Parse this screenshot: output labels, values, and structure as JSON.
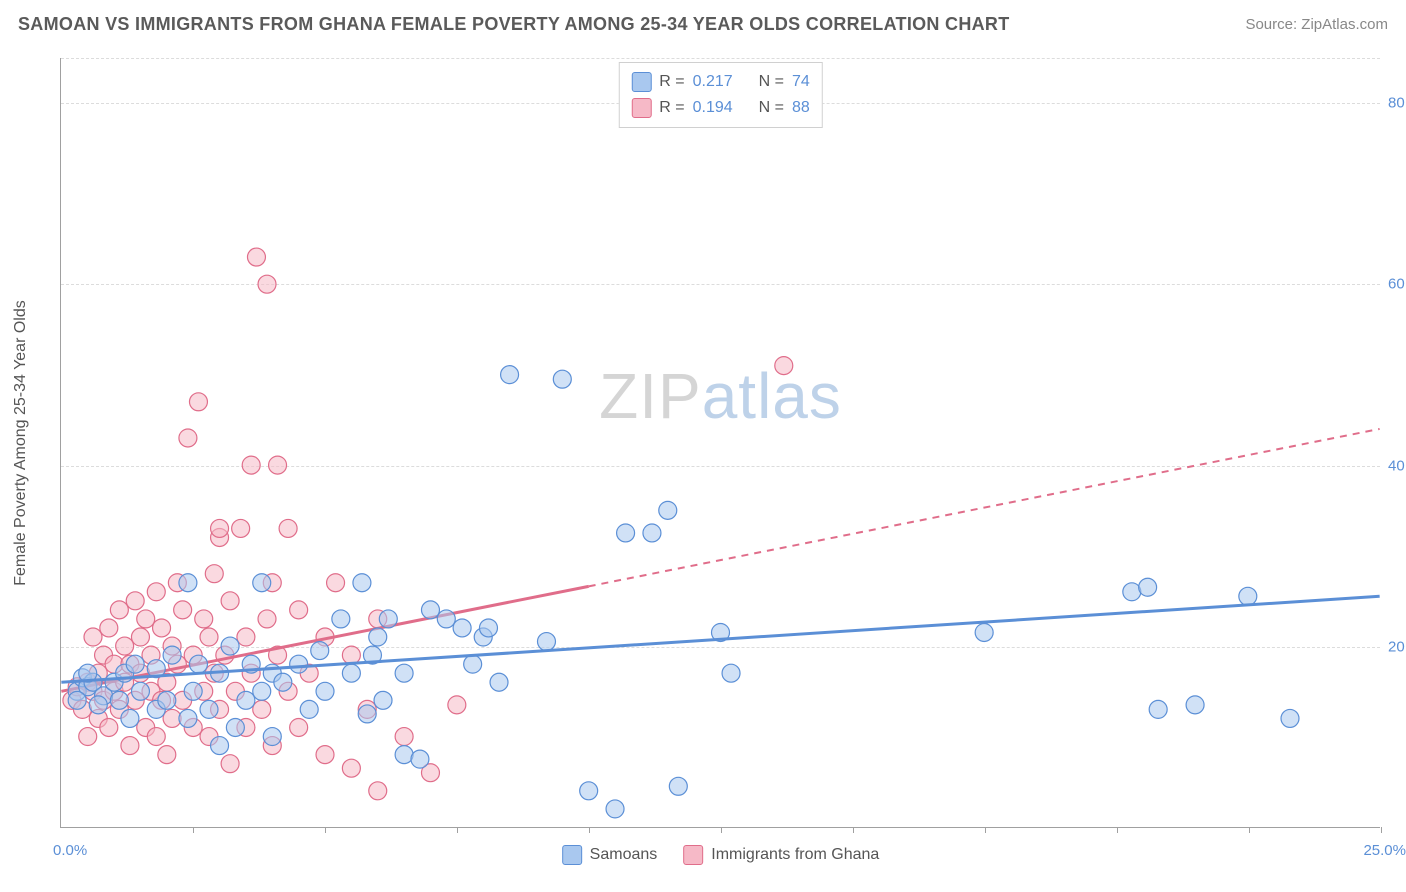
{
  "title": "SAMOAN VS IMMIGRANTS FROM GHANA FEMALE POVERTY AMONG 25-34 YEAR OLDS CORRELATION CHART",
  "source": "Source: ZipAtlas.com",
  "watermark": {
    "first": "ZIP",
    "second": "atlas"
  },
  "y_axis_label": "Female Poverty Among 25-34 Year Olds",
  "axes": {
    "xlim": [
      0,
      25
    ],
    "ylim": [
      0,
      85
    ],
    "x_origin_label": "0.0%",
    "x_max_label": "25.0%",
    "y_ticks": [
      20,
      40,
      60,
      80
    ],
    "y_tick_labels": [
      "20.0%",
      "40.0%",
      "60.0%",
      "80.0%"
    ],
    "x_tick_step": 2.5,
    "grid_color": "#dcdcdc",
    "axis_tick_label_color": "#5b8fd6",
    "axis_label_fontsize": 16
  },
  "legend": {
    "top": [
      {
        "r_label": "R =",
        "r_value": "0.217",
        "n_label": "N =",
        "n_value": "74",
        "swatch_fill": "#a9c8ef",
        "swatch_stroke": "#5b8fd6"
      },
      {
        "r_label": "R =",
        "r_value": "0.194",
        "n_label": "N =",
        "n_value": "88",
        "swatch_fill": "#f6b9c7",
        "swatch_stroke": "#e06d8a"
      }
    ],
    "bottom": [
      {
        "label": "Samoans",
        "swatch_fill": "#a9c8ef",
        "swatch_stroke": "#5b8fd6"
      },
      {
        "label": "Immigrants from Ghana",
        "swatch_fill": "#f6b9c7",
        "swatch_stroke": "#e06d8a"
      }
    ]
  },
  "series": {
    "samoans": {
      "color_fill": "#a9c8ef",
      "color_stroke": "#5b8fd6",
      "marker_radius": 9,
      "marker_opacity": 0.55,
      "trend": {
        "start": [
          0,
          16
        ],
        "solid_to_x": 25,
        "end": [
          25,
          25.5
        ],
        "stroke_width": 3
      },
      "points": [
        [
          0.3,
          15
        ],
        [
          0.4,
          16.5
        ],
        [
          0.5,
          15.5
        ],
        [
          0.6,
          16
        ],
        [
          0.3,
          14
        ],
        [
          0.8,
          14.5
        ],
        [
          1.0,
          16
        ],
        [
          1.2,
          17
        ],
        [
          1.1,
          14
        ],
        [
          1.4,
          18
        ],
        [
          1.3,
          12
        ],
        [
          1.5,
          15
        ],
        [
          1.8,
          13
        ],
        [
          1.8,
          17.5
        ],
        [
          2.0,
          14
        ],
        [
          2.1,
          19
        ],
        [
          2.4,
          12
        ],
        [
          2.4,
          27
        ],
        [
          2.5,
          15
        ],
        [
          2.6,
          18
        ],
        [
          2.8,
          13
        ],
        [
          3.0,
          9
        ],
        [
          3.0,
          17
        ],
        [
          3.2,
          20
        ],
        [
          3.3,
          11
        ],
        [
          3.5,
          14
        ],
        [
          3.6,
          18
        ],
        [
          3.8,
          15
        ],
        [
          3.8,
          27
        ],
        [
          4.0,
          10
        ],
        [
          4.0,
          17
        ],
        [
          4.2,
          16
        ],
        [
          4.5,
          18
        ],
        [
          4.7,
          13
        ],
        [
          4.9,
          19.5
        ],
        [
          5.0,
          15
        ],
        [
          5.3,
          23
        ],
        [
          5.5,
          17
        ],
        [
          5.7,
          27
        ],
        [
          5.8,
          12.5
        ],
        [
          5.9,
          19
        ],
        [
          6.0,
          21
        ],
        [
          6.1,
          14
        ],
        [
          6.2,
          23
        ],
        [
          6.5,
          8
        ],
        [
          6.5,
          17
        ],
        [
          6.8,
          7.5
        ],
        [
          7.0,
          24
        ],
        [
          7.3,
          23
        ],
        [
          7.6,
          22
        ],
        [
          7.8,
          18
        ],
        [
          8.0,
          21
        ],
        [
          8.1,
          22
        ],
        [
          8.3,
          16
        ],
        [
          8.5,
          50
        ],
        [
          9.2,
          20.5
        ],
        [
          9.5,
          49.5
        ],
        [
          10.0,
          4
        ],
        [
          10.5,
          2
        ],
        [
          10.7,
          32.5
        ],
        [
          11.2,
          32.5
        ],
        [
          11.5,
          35
        ],
        [
          11.7,
          4.5
        ],
        [
          12.5,
          21.5
        ],
        [
          12.7,
          17
        ],
        [
          17.5,
          21.5
        ],
        [
          20.3,
          26
        ],
        [
          20.6,
          26.5
        ],
        [
          20.8,
          13
        ],
        [
          21.5,
          13.5
        ],
        [
          22.5,
          25.5
        ],
        [
          23.3,
          12
        ],
        [
          0.5,
          17
        ],
        [
          0.7,
          13.5
        ]
      ]
    },
    "ghana": {
      "color_fill": "#f6b9c7",
      "color_stroke": "#e06d8a",
      "marker_radius": 9,
      "marker_opacity": 0.55,
      "trend": {
        "start": [
          0,
          15
        ],
        "solid_to_x": 10,
        "end": [
          25,
          44
        ],
        "stroke_width": 3
      },
      "points": [
        [
          0.2,
          14
        ],
        [
          0.3,
          15.5
        ],
        [
          0.4,
          13
        ],
        [
          0.5,
          16
        ],
        [
          0.5,
          10
        ],
        [
          0.6,
          15
        ],
        [
          0.6,
          21
        ],
        [
          0.7,
          12
        ],
        [
          0.7,
          17
        ],
        [
          0.8,
          14
        ],
        [
          0.8,
          19
        ],
        [
          0.9,
          11
        ],
        [
          0.9,
          22
        ],
        [
          1.0,
          15
        ],
        [
          1.0,
          18
        ],
        [
          1.1,
          13
        ],
        [
          1.1,
          24
        ],
        [
          1.2,
          16
        ],
        [
          1.2,
          20
        ],
        [
          1.3,
          9
        ],
        [
          1.3,
          18
        ],
        [
          1.4,
          14
        ],
        [
          1.4,
          25
        ],
        [
          1.5,
          17
        ],
        [
          1.5,
          21
        ],
        [
          1.6,
          11
        ],
        [
          1.6,
          23
        ],
        [
          1.7,
          15
        ],
        [
          1.7,
          19
        ],
        [
          1.8,
          10
        ],
        [
          1.8,
          26
        ],
        [
          1.9,
          14
        ],
        [
          1.9,
          22
        ],
        [
          2.0,
          16
        ],
        [
          2.0,
          8
        ],
        [
          2.1,
          20
        ],
        [
          2.1,
          12
        ],
        [
          2.2,
          18
        ],
        [
          2.2,
          27
        ],
        [
          2.3,
          14
        ],
        [
          2.3,
          24
        ],
        [
          2.4,
          43
        ],
        [
          2.5,
          11
        ],
        [
          2.5,
          19
        ],
        [
          2.6,
          47
        ],
        [
          2.7,
          15
        ],
        [
          2.7,
          23
        ],
        [
          2.8,
          10
        ],
        [
          2.8,
          21
        ],
        [
          2.9,
          17
        ],
        [
          2.9,
          28
        ],
        [
          3.0,
          13
        ],
        [
          3.0,
          32
        ],
        [
          3.0,
          33
        ],
        [
          3.1,
          19
        ],
        [
          3.2,
          7
        ],
        [
          3.2,
          25
        ],
        [
          3.3,
          15
        ],
        [
          3.4,
          33
        ],
        [
          3.5,
          11
        ],
        [
          3.5,
          21
        ],
        [
          3.6,
          17
        ],
        [
          3.6,
          40
        ],
        [
          3.7,
          63
        ],
        [
          3.8,
          13
        ],
        [
          3.9,
          60
        ],
        [
          3.9,
          23
        ],
        [
          4.0,
          9
        ],
        [
          4.0,
          27
        ],
        [
          4.1,
          19
        ],
        [
          4.1,
          40
        ],
        [
          4.3,
          15
        ],
        [
          4.3,
          33
        ],
        [
          4.5,
          11
        ],
        [
          4.5,
          24
        ],
        [
          4.7,
          17
        ],
        [
          5.0,
          8
        ],
        [
          5.0,
          21
        ],
        [
          5.2,
          27
        ],
        [
          5.5,
          6.5
        ],
        [
          5.5,
          19
        ],
        [
          5.8,
          13
        ],
        [
          6.0,
          4
        ],
        [
          6.0,
          23
        ],
        [
          6.5,
          10
        ],
        [
          7.0,
          6
        ],
        [
          7.5,
          13.5
        ],
        [
          13.7,
          51
        ]
      ]
    }
  }
}
